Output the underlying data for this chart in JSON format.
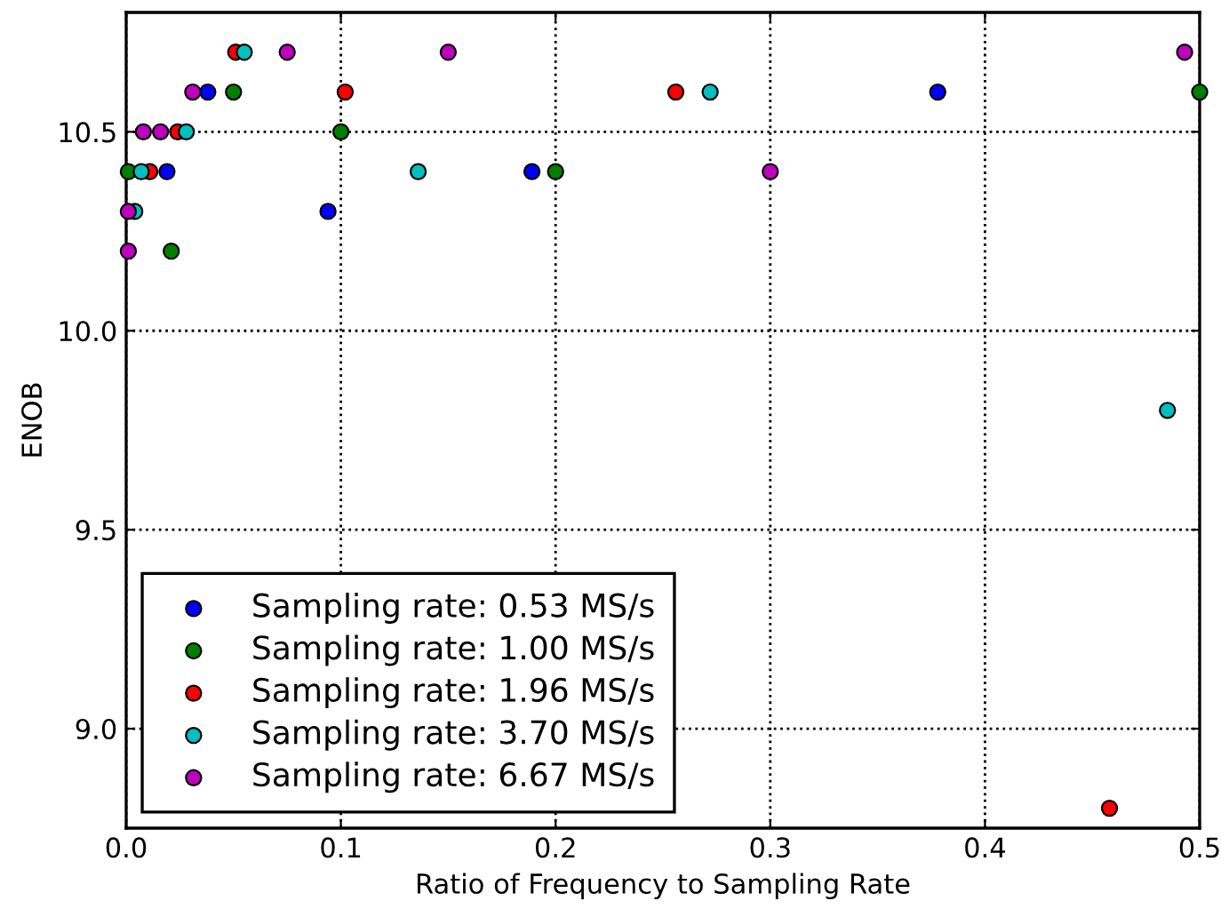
{
  "chart_data": {
    "type": "scatter",
    "xlabel": "Ratio of Frequency to Sampling Rate",
    "ylabel": "ENOB",
    "xlim": [
      0,
      0.5
    ],
    "ylim": [
      8.75,
      10.8
    ],
    "xticks": [
      {
        "value": 0,
        "label": "0.0"
      },
      0.1,
      0.2,
      0.3,
      0.4,
      0.5
    ],
    "yticks": [
      {
        "value": 9,
        "label": "9.0"
      },
      9.5,
      {
        "value": 10,
        "label": "10.0"
      },
      10.5
    ],
    "grid": true,
    "legend": "bottom left",
    "marker": "circle",
    "series": [
      {
        "name": "Sampling rate: 0.53 MS/s",
        "color": "#0000ff",
        "x": [
          0.019,
          0.038,
          0.094,
          0.189,
          0.378
        ],
        "values": [
          10.4,
          10.6,
          10.3,
          10.4,
          10.6
        ]
      },
      {
        "name": "Sampling rate: 1.00 MS/s",
        "color": "#007f00",
        "x": [
          0.001,
          0.021,
          0.05,
          0.1,
          0.2,
          0.5
        ],
        "values": [
          10.4,
          10.2,
          10.6,
          10.5,
          10.4,
          10.6
        ]
      },
      {
        "name": "Sampling rate: 1.96 MS/s",
        "color": "#ff0000",
        "x": [
          0.011,
          0.024,
          0.051,
          0.102,
          0.256,
          0.458
        ],
        "values": [
          10.4,
          10.5,
          10.7,
          10.6,
          10.6,
          8.8
        ]
      },
      {
        "name": "Sampling rate: 3.70 MS/s",
        "color": "#00bfbf",
        "x": [
          0.004,
          0.007,
          0.028,
          0.055,
          0.136,
          0.272,
          0.485
        ],
        "values": [
          10.3,
          10.4,
          10.5,
          10.7,
          10.4,
          10.6,
          9.8
        ]
      },
      {
        "name": "Sampling rate: 6.67 MS/s",
        "color": "#bf00bf",
        "x": [
          0.001,
          0.001,
          0.008,
          0.016,
          0.031,
          0.075,
          0.15,
          0.3,
          0.493
        ],
        "values": [
          10.2,
          10.3,
          10.5,
          10.5,
          10.6,
          10.7,
          10.7,
          10.4,
          10.7
        ]
      }
    ]
  }
}
